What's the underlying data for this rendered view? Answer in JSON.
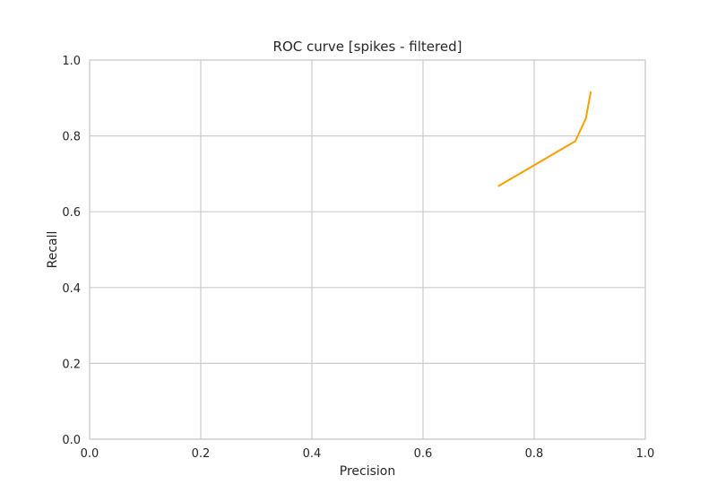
{
  "chart_data": {
    "type": "line",
    "title": "ROC curve [spikes - filtered]",
    "xlabel": "Precision",
    "ylabel": "Recall",
    "xlim": [
      0.0,
      1.0
    ],
    "ylim": [
      0.0,
      1.0
    ],
    "xticks": [
      "0.0",
      "0.2",
      "0.4",
      "0.6",
      "0.8",
      "1.0"
    ],
    "yticks": [
      "0.0",
      "0.2",
      "0.4",
      "0.6",
      "0.8",
      "1.0"
    ],
    "grid": true,
    "series": [
      {
        "color": "#f5a000",
        "x": [
          0.735,
          0.874,
          0.893,
          0.902
        ],
        "y": [
          0.667,
          0.786,
          0.846,
          0.917
        ]
      }
    ]
  }
}
